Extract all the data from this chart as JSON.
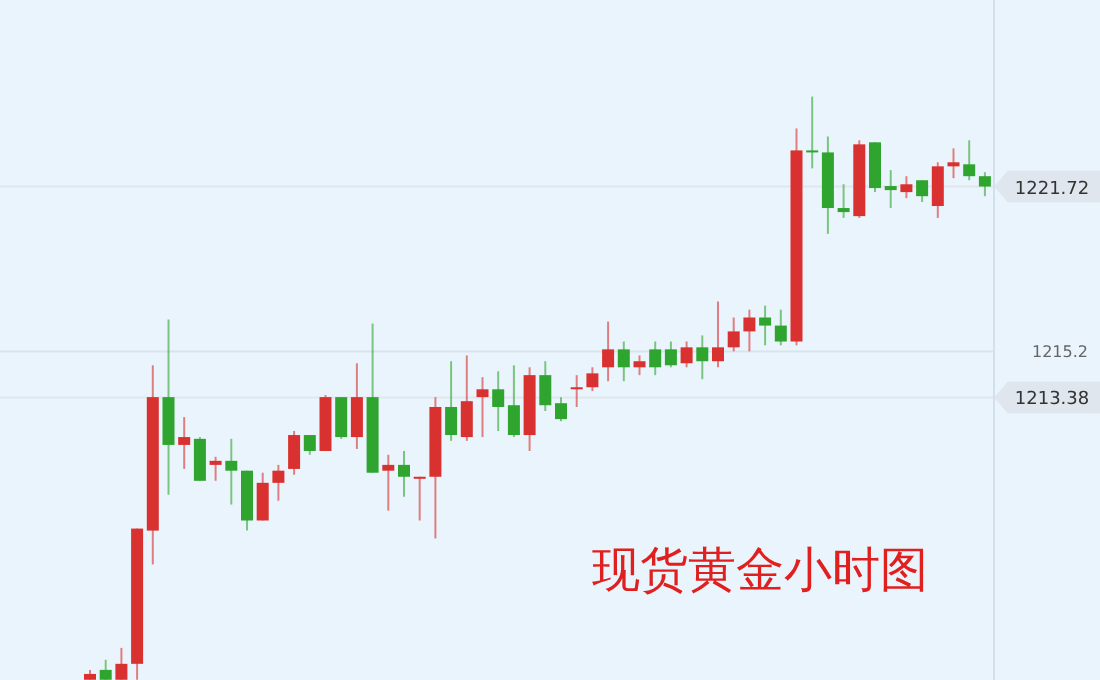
{
  "chart_data": {
    "type": "candlestick",
    "title": "现货黄金小时图",
    "ylim": [
      1202.2,
      1229.1
    ],
    "yticks": [
      1213.38,
      1215.2,
      1221.72
    ],
    "categories": [
      null,
      null,
      null,
      null,
      null,
      null,
      null,
      null,
      null,
      null,
      null,
      null,
      null,
      null,
      null,
      null,
      null,
      null,
      null,
      null,
      null,
      null,
      null,
      null,
      null,
      null,
      null,
      null,
      null,
      null,
      null,
      null,
      null,
      null,
      null,
      null,
      null,
      null,
      null,
      null,
      null,
      null,
      null,
      null,
      null,
      null,
      null,
      null,
      null,
      null,
      null,
      null,
      null,
      null,
      null,
      null,
      null,
      null
    ],
    "ohlc": [
      [
        1202.21,
        1202.6,
        1202.21,
        1202.44
      ],
      [
        1202.6,
        1203.0,
        1202.21,
        1202.21
      ],
      [
        1202.21,
        1203.47,
        1202.21,
        1202.84
      ],
      [
        1202.84,
        1208.19,
        1202.21,
        1208.19
      ],
      [
        1208.11,
        1214.65,
        1206.77,
        1213.39
      ],
      [
        1213.39,
        1216.46,
        1209.53,
        1211.5
      ],
      [
        1211.5,
        1212.6,
        1210.55,
        1211.81
      ],
      [
        1211.74,
        1211.81,
        1210.08,
        1210.08
      ],
      [
        1210.71,
        1211.03,
        1210.08,
        1210.87
      ],
      [
        1210.87,
        1211.74,
        1209.14,
        1210.48
      ],
      [
        1210.48,
        1210.48,
        1208.11,
        1208.51
      ],
      [
        1208.51,
        1210.4,
        1208.51,
        1210.0
      ],
      [
        1210.0,
        1210.71,
        1209.29,
        1210.48
      ],
      [
        1210.55,
        1212.05,
        1210.32,
        1211.89
      ],
      [
        1211.89,
        1211.89,
        1211.11,
        1211.26
      ],
      [
        1211.26,
        1213.47,
        1211.26,
        1213.39
      ],
      [
        1213.39,
        1213.39,
        1211.74,
        1211.81
      ],
      [
        1211.81,
        1214.73,
        1211.34,
        1213.39
      ],
      [
        1213.39,
        1216.3,
        1210.4,
        1210.4
      ],
      [
        1210.48,
        1211.11,
        1208.9,
        1210.71
      ],
      [
        1210.71,
        1211.26,
        1209.45,
        1210.24
      ],
      [
        1210.16,
        1210.24,
        1208.51,
        1210.24
      ],
      [
        1210.24,
        1213.39,
        1207.8,
        1213.0
      ],
      [
        1213.0,
        1214.81,
        1211.66,
        1211.89
      ],
      [
        1211.81,
        1215.04,
        1211.66,
        1213.23
      ],
      [
        1213.39,
        1214.18,
        1211.81,
        1213.7
      ],
      [
        1213.7,
        1214.41,
        1212.05,
        1213.0
      ],
      [
        1213.07,
        1214.65,
        1211.81,
        1211.89
      ],
      [
        1211.89,
        1214.57,
        1211.26,
        1214.26
      ],
      [
        1214.26,
        1214.81,
        1212.84,
        1213.07
      ],
      [
        1213.15,
        1213.39,
        1212.44,
        1212.52
      ],
      [
        1213.7,
        1214.26,
        1213.0,
        1213.78
      ],
      [
        1213.78,
        1214.57,
        1213.63,
        1214.33
      ],
      [
        1214.57,
        1216.38,
        1214.02,
        1215.28
      ],
      [
        1215.28,
        1215.59,
        1214.02,
        1214.57
      ],
      [
        1214.57,
        1215.04,
        1214.26,
        1214.81
      ],
      [
        1215.28,
        1215.59,
        1214.26,
        1214.57
      ],
      [
        1215.28,
        1215.59,
        1214.57,
        1214.65
      ],
      [
        1214.73,
        1215.59,
        1214.57,
        1215.36
      ],
      [
        1215.36,
        1215.83,
        1214.1,
        1214.81
      ],
      [
        1214.81,
        1217.17,
        1214.57,
        1215.36
      ],
      [
        1215.36,
        1216.54,
        1215.2,
        1215.99
      ],
      [
        1215.99,
        1216.85,
        1215.2,
        1216.54
      ],
      [
        1216.54,
        1217.01,
        1215.44,
        1216.22
      ],
      [
        1216.22,
        1216.85,
        1215.44,
        1215.59
      ],
      [
        1215.59,
        1224.02,
        1215.44,
        1223.15
      ],
      [
        1223.15,
        1225.28,
        1222.44,
        1223.07
      ],
      [
        1223.07,
        1223.7,
        1219.85,
        1220.87
      ],
      [
        1220.87,
        1221.81,
        1220.48,
        1220.71
      ],
      [
        1220.55,
        1223.55,
        1220.48,
        1223.39
      ],
      [
        1223.47,
        1223.47,
        1221.5,
        1221.66
      ],
      [
        1221.74,
        1222.37,
        1220.87,
        1221.58
      ],
      [
        1221.5,
        1222.13,
        1221.26,
        1221.81
      ],
      [
        1221.97,
        1221.97,
        1221.11,
        1221.34
      ],
      [
        1220.95,
        1222.68,
        1220.48,
        1222.52
      ],
      [
        1222.52,
        1223.23,
        1222.05,
        1222.68
      ],
      [
        1222.6,
        1223.55,
        1221.97,
        1222.13
      ],
      [
        1222.13,
        1222.29,
        1221.34,
        1221.72
      ]
    ],
    "colors": [
      "#d9312f",
      "#2fa52f",
      "#d9312f",
      "#d9312f",
      "#d9312f",
      "#2fa52f",
      "#d9312f",
      "#2fa52f",
      "#d9312f",
      "#2fa52f",
      "#2fa52f",
      "#d9312f",
      "#d9312f",
      "#d9312f",
      "#2fa52f",
      "#d9312f",
      "#2fa52f",
      "#d9312f",
      "#2fa52f",
      "#d9312f",
      "#2fa52f",
      "#d9312f",
      "#d9312f",
      "#2fa52f",
      "#d9312f",
      "#d9312f",
      "#2fa52f",
      "#2fa52f",
      "#d9312f",
      "#2fa52f",
      "#2fa52f",
      "#d9312f",
      "#d9312f",
      "#d9312f",
      "#2fa52f",
      "#d9312f",
      "#2fa52f",
      "#2fa52f",
      "#d9312f",
      "#2fa52f",
      "#d9312f",
      "#d9312f",
      "#d9312f",
      "#2fa52f",
      "#2fa52f",
      "#d9312f",
      "#2fa52f",
      "#2fa52f",
      "#2fa52f",
      "#d9312f",
      "#2fa52f",
      "#2fa52f",
      "#d9312f",
      "#2fa52f",
      "#d9312f",
      "#d9312f",
      "#2fa52f",
      "#2fa52f"
    ],
    "ref_lines": [
      {
        "axis": "y",
        "value": 1221.72,
        "label": "1221.72",
        "color": "#dfe6ee"
      },
      {
        "axis": "y",
        "value": 1213.38,
        "label": "1213.38",
        "color": "#dfe6ee"
      },
      {
        "axis": "y",
        "value": 1215.2,
        "color": "#d8e3ee"
      }
    ]
  }
}
